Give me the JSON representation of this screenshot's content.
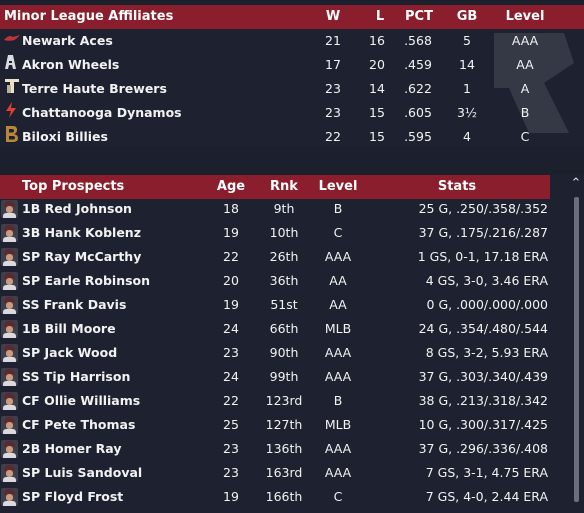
{
  "affiliates": {
    "headers": {
      "title": "Minor League Affiliates",
      "w": "W",
      "l": "L",
      "pct": "PCT",
      "gb": "GB",
      "level": "Level"
    },
    "rows": [
      {
        "name": "Newark Aces",
        "w": "21",
        "l": "16",
        "pct": ".568",
        "gb": "5",
        "level": "AAA",
        "logo": "newark-aces-logo"
      },
      {
        "name": "Akron Wheels",
        "w": "17",
        "l": "20",
        "pct": ".459",
        "gb": "14",
        "level": "AA",
        "logo": "akron-wheels-logo"
      },
      {
        "name": "Terre Haute Brewers",
        "w": "23",
        "l": "14",
        "pct": ".622",
        "gb": "1",
        "level": "A",
        "logo": "terre-haute-brewers-logo"
      },
      {
        "name": "Chattanooga Dynamos",
        "w": "23",
        "l": "15",
        "pct": ".605",
        "gb": "3½",
        "level": "B",
        "logo": "chattanooga-dynamos-logo"
      },
      {
        "name": "Biloxi Billies",
        "w": "22",
        "l": "15",
        "pct": ".595",
        "gb": "4",
        "level": "C",
        "logo": "biloxi-billies-logo"
      }
    ]
  },
  "prospects": {
    "headers": {
      "title": "Top Prospects",
      "age": "Age",
      "rnk": "Rnk",
      "level": "Level",
      "stats": "Stats"
    },
    "rows": [
      {
        "name": "1B Red Johnson",
        "age": "18",
        "rnk": "9th",
        "level": "B",
        "stats": "25 G, .250/.358/.352"
      },
      {
        "name": "3B Hank Koblenz",
        "age": "19",
        "rnk": "10th",
        "level": "C",
        "stats": "37 G, .175/.216/.287"
      },
      {
        "name": "SP Ray McCarthy",
        "age": "22",
        "rnk": "26th",
        "level": "AAA",
        "stats": "1 GS, 0-1, 17.18 ERA"
      },
      {
        "name": "SP Earle Robinson",
        "age": "20",
        "rnk": "36th",
        "level": "AA",
        "stats": "4 GS, 3-0, 3.46 ERA"
      },
      {
        "name": "SS Frank Davis",
        "age": "19",
        "rnk": "51st",
        "level": "AA",
        "stats": "0 G, .000/.000/.000"
      },
      {
        "name": "1B Bill Moore",
        "age": "24",
        "rnk": "66th",
        "level": "MLB",
        "stats": "24 G, .354/.480/.544"
      },
      {
        "name": "SP Jack Wood",
        "age": "23",
        "rnk": "90th",
        "level": "AAA",
        "stats": "8 GS, 3-2, 5.93 ERA"
      },
      {
        "name": "SS Tip Harrison",
        "age": "24",
        "rnk": "99th",
        "level": "AAA",
        "stats": "37 G, .303/.340/.439"
      },
      {
        "name": "CF Ollie Williams",
        "age": "22",
        "rnk": "123rd",
        "level": "B",
        "stats": "38 G, .213/.318/.342"
      },
      {
        "name": "CF Pete Thomas",
        "age": "25",
        "rnk": "127th",
        "level": "MLB",
        "stats": "10 G, .300/.317/.425"
      },
      {
        "name": "2B Homer Ray",
        "age": "23",
        "rnk": "136th",
        "level": "AAA",
        "stats": "37 G, .296/.336/.408"
      },
      {
        "name": "SP Luis Sandoval",
        "age": "23",
        "rnk": "163rd",
        "level": "AAA",
        "stats": "7 GS, 3-1, 4.75 ERA"
      },
      {
        "name": "SP Floyd Frost",
        "age": "19",
        "rnk": "166th",
        "level": "C",
        "stats": "7 GS, 4-0, 2.44 ERA"
      }
    ]
  },
  "colors": {
    "header_bg": "#8a1e2c",
    "panel_bg": "#1e2230",
    "page_bg": "#1c1f2c",
    "text": "#ffffff"
  },
  "scrollbar": {
    "up_icon": "chevron-up-icon",
    "thumb_fraction": 1.0
  }
}
